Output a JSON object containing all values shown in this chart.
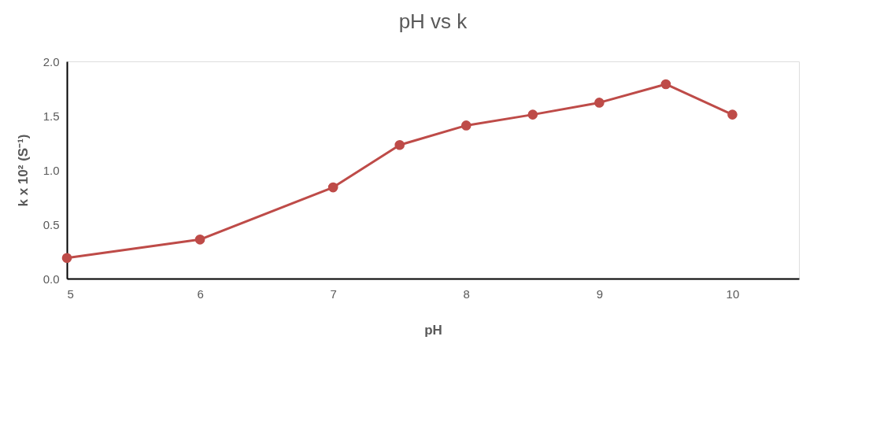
{
  "chart_data": {
    "type": "line",
    "title": "pH vs k",
    "xlabel": "pH",
    "ylabel": "k x 10² (S⁻¹)",
    "x": [
      5,
      6,
      7,
      7.5,
      8,
      8.5,
      9,
      9.5,
      10
    ],
    "series": [
      {
        "color": "#be4b48",
        "values": [
          0.19,
          0.36,
          0.84,
          1.23,
          1.41,
          1.51,
          1.62,
          1.79,
          1.51
        ]
      }
    ],
    "xlim": [
      5,
      10.5
    ],
    "xticks": [
      5,
      6,
      7,
      8,
      9,
      10
    ],
    "ylim": [
      0,
      2.0
    ],
    "yticks": [
      {
        "value": 0,
        "label": "0.0"
      },
      {
        "value": 0.5,
        "label": "0.5"
      },
      {
        "value": 1.0,
        "label": "1.0"
      },
      {
        "value": 1.5,
        "label": "1.5"
      },
      {
        "value": 2.0,
        "label": "2.0"
      }
    ],
    "marker": "circle",
    "line_style": "solid",
    "grid": false
  }
}
